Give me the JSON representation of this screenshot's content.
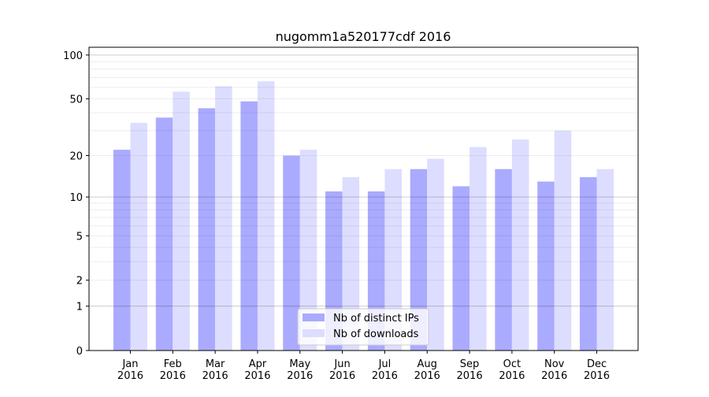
{
  "chart_data": {
    "type": "bar",
    "title": "nugomm1a520177cdf 2016",
    "xlabel": "",
    "ylabel": "",
    "yscale": "log(1+y)",
    "ylim": [
      0,
      113
    ],
    "yticks": [
      0,
      1,
      2,
      5,
      10,
      20,
      50,
      100
    ],
    "grid": true,
    "legend_position": "bottom-center",
    "categories": [
      "Jan\n2016",
      "Feb\n2016",
      "Mar\n2016",
      "Apr\n2016",
      "May\n2016",
      "Jun\n2016",
      "Jul\n2016",
      "Aug\n2016",
      "Sep\n2016",
      "Oct\n2016",
      "Nov\n2016",
      "Dec\n2016"
    ],
    "series": [
      {
        "name": "Nb of distinct IPs",
        "color": "#aaaaff",
        "values": [
          22,
          37,
          43,
          48,
          20,
          11,
          11,
          16,
          12,
          16,
          13,
          14
        ]
      },
      {
        "name": "Nb of downloads",
        "color": "#ddddff",
        "values": [
          34,
          56,
          61,
          66,
          22,
          14,
          16,
          19,
          23,
          26,
          30,
          16
        ]
      }
    ]
  }
}
